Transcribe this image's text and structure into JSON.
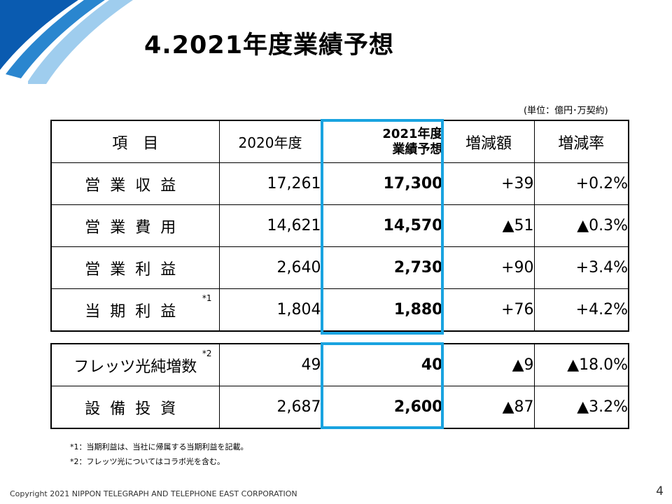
{
  "title": "4.2021年度業績予想",
  "unit_note": "(単位：億円･万契約)",
  "table_header": {
    "item": "項　目",
    "prev_year": "2020年度",
    "forecast_line1": "2021年度",
    "forecast_line2": "業績予想",
    "change": "増減額",
    "change_rate": "増減率"
  },
  "rows_main": [
    {
      "item": "営業収益",
      "prev": "17,261",
      "forecast": "17,300",
      "change": "+39",
      "rate": "+0.2%",
      "note": ""
    },
    {
      "item": "営業費用",
      "prev": "14,621",
      "forecast": "14,570",
      "change": "▲51",
      "rate": "▲0.3%",
      "note": ""
    },
    {
      "item": "営業利益",
      "prev": "2,640",
      "forecast": "2,730",
      "change": "+90",
      "rate": "+3.4%",
      "note": ""
    },
    {
      "item": "当期利益",
      "prev": "1,804",
      "forecast": "1,880",
      "change": "+76",
      "rate": "+4.2%",
      "note": "*1"
    }
  ],
  "rows_sub": [
    {
      "item": "フレッツ光純増数",
      "prev": "49",
      "forecast": "40",
      "change": "▲9",
      "rate": "▲18.0%",
      "note": "*2"
    },
    {
      "item": "設備投資",
      "prev": "2,687",
      "forecast": "2,600",
      "change": "▲87",
      "rate": "▲3.2%",
      "note": ""
    }
  ],
  "notes": [
    "*1：当期利益は、当社に帰属する当期利益を記載。",
    "*2：フレッツ光についてはコラボ光を含む。"
  ],
  "footer": "Copyright 2021 NIPPON TELEGRAPH AND TELEPHONE EAST CORPORATION",
  "page_number": "4",
  "colors": {
    "accent_blue": "#19a3e0",
    "deco_blue": "#0b5fb0"
  }
}
